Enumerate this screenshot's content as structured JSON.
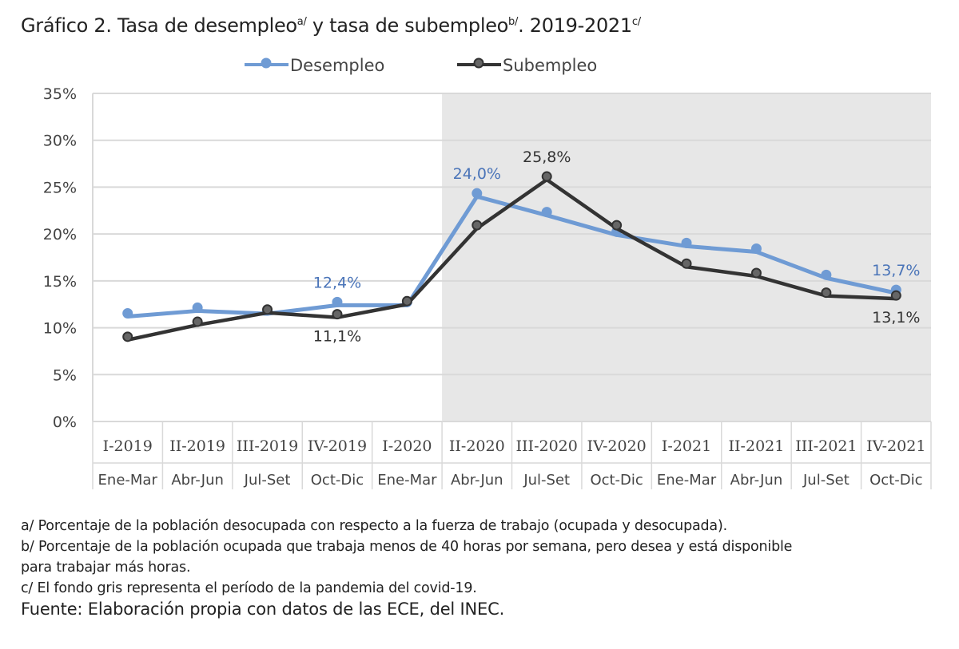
{
  "chart_data": {
    "type": "line",
    "title": "Gráfico 2. Tasa de desempleo",
    "title_sup_a": "a/",
    "title_mid": " y tasa de subempleo",
    "title_sup_b": "b/",
    "title_end": ". 2019-2021",
    "title_sup_c": "c/",
    "categories": [
      "I-2019",
      "II-2019",
      "III-2019",
      "IV-2019",
      "I-2020",
      "II-2020",
      "III-2020",
      "IV-2020",
      "I-2021",
      "II-2021",
      "III-2021",
      "IV-2021"
    ],
    "subcategories": [
      "Ene-Mar",
      "Abr-Jun",
      "Jul-Set",
      "Oct-Dic",
      "Ene-Mar",
      "Abr-Jun",
      "Jul-Set",
      "Oct-Dic",
      "Ene-Mar",
      "Abr-Jun",
      "Jul-Set",
      "Oct-Dic"
    ],
    "ylim": [
      0,
      35
    ],
    "yticks": [
      "0%",
      "5%",
      "10%",
      "15%",
      "20%",
      "25%",
      "30%",
      "35%"
    ],
    "grid": true,
    "legend_position": "top",
    "shaded_region": {
      "from": "II-2020",
      "to": "IV-2021",
      "color": "#e7e7e7"
    },
    "series": [
      {
        "name": "Desempleo",
        "color": "#6f9bd4",
        "values": [
          11.2,
          11.8,
          11.5,
          12.4,
          12.4,
          24.0,
          22.0,
          19.9,
          18.7,
          18.1,
          15.3,
          13.7
        ],
        "labels": {
          "3": "12,4%",
          "5": "24,0%",
          "11": "13,7%"
        }
      },
      {
        "name": "Subempleo",
        "color": "#333333",
        "values": [
          8.7,
          10.3,
          11.6,
          11.1,
          12.5,
          20.6,
          25.8,
          20.6,
          16.5,
          15.5,
          13.4,
          13.1
        ],
        "labels": {
          "3": "11,1%",
          "6": "25,8%",
          "11": "13,1%"
        }
      }
    ]
  },
  "notes": {
    "a": "a/ Porcentaje de la población desocupada con respecto a la fuerza de trabajo (ocupada y desocupada).",
    "b1": "b/ Porcentaje de la población ocupada que trabaja menos de 40 horas por semana, pero desea y está disponible",
    "b2": "para trabajar más horas.",
    "c": "c/ El fondo gris representa el período de la pandemia del covid-19.",
    "source": "Fuente: Elaboración propia con datos de las ECE, del INEC."
  }
}
